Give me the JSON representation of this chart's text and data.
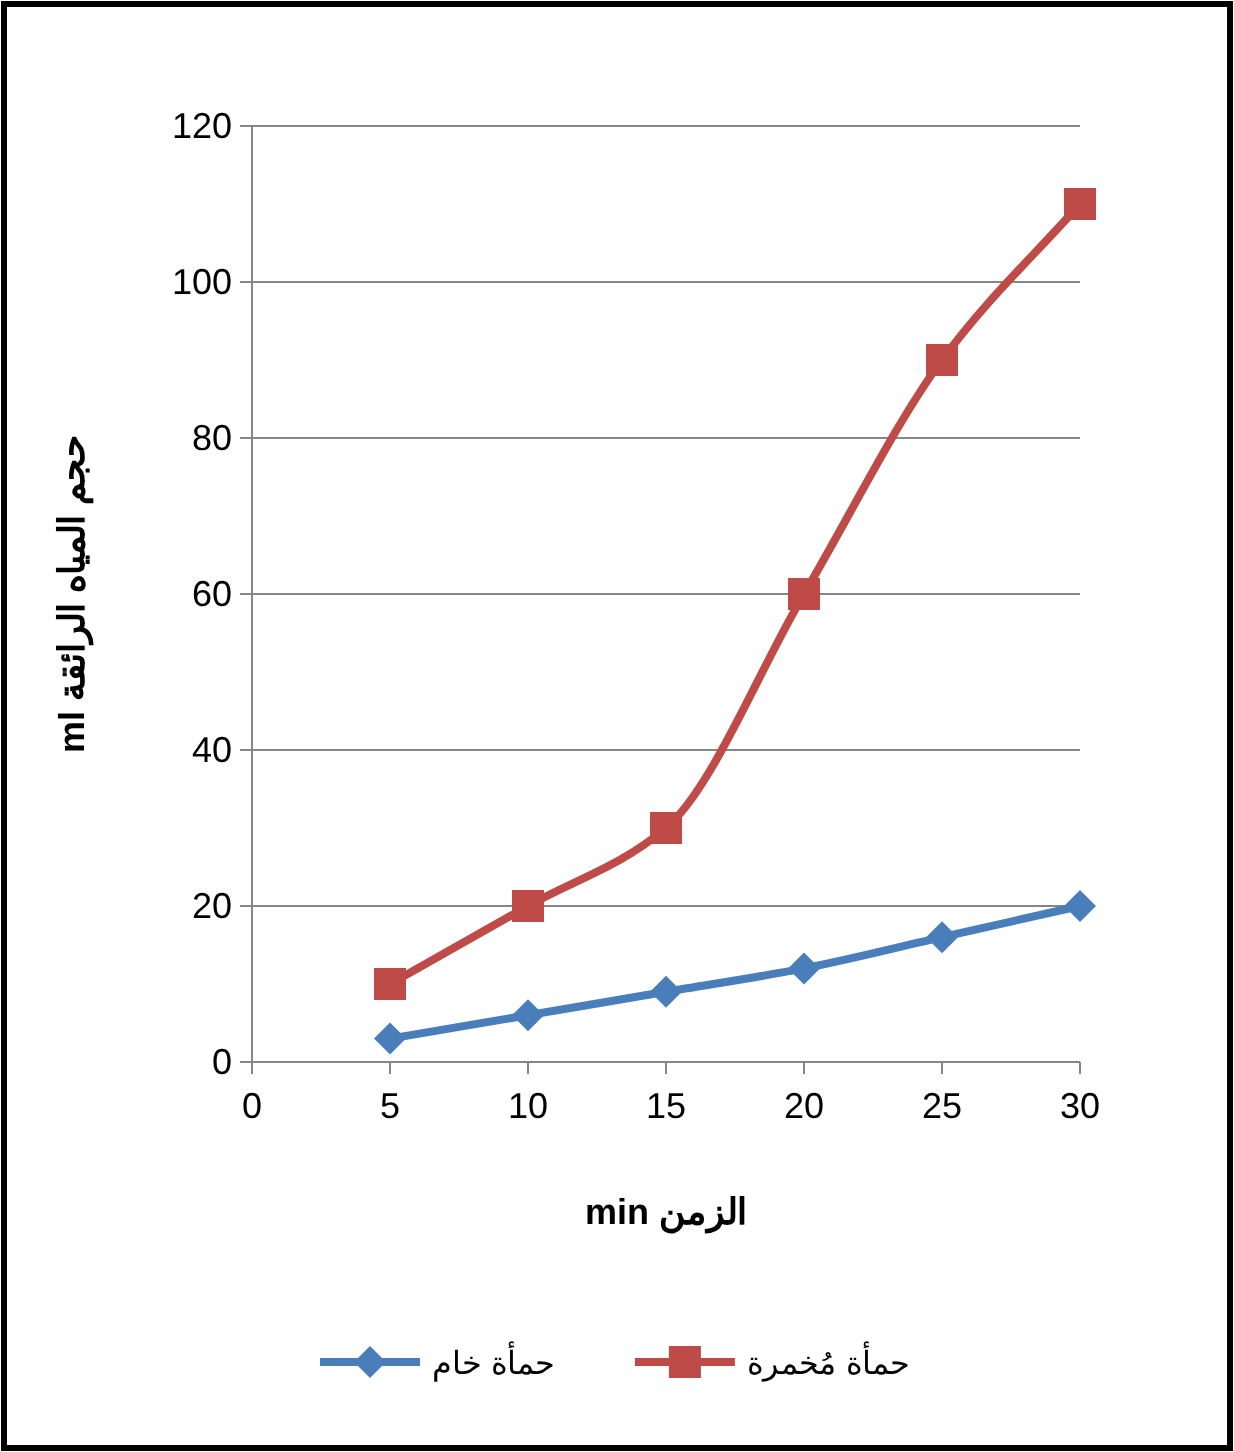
{
  "chart_data": {
    "type": "line",
    "xlabel": "الزمن min",
    "ylabel": "حجم المياه الرائقة ml",
    "x": [
      5,
      10,
      15,
      20,
      25,
      30
    ],
    "series": [
      {
        "name": "حمأة خام",
        "color": "#4a7ebb",
        "marker": "diamond",
        "values": [
          3,
          6,
          9,
          12,
          16,
          20
        ]
      },
      {
        "name": "حمأة مُخمرة",
        "color": "#be4b48",
        "marker": "square",
        "values": [
          10,
          20,
          30,
          60,
          90,
          110
        ]
      }
    ],
    "xlim": [
      0,
      30
    ],
    "xticks": [
      0,
      5,
      10,
      15,
      20,
      25,
      30
    ],
    "ylim": [
      0,
      120
    ],
    "yticks": [
      0,
      20,
      40,
      60,
      80,
      100,
      120
    ],
    "grid": "y",
    "legend": "bottom",
    "line_style": "solid"
  }
}
